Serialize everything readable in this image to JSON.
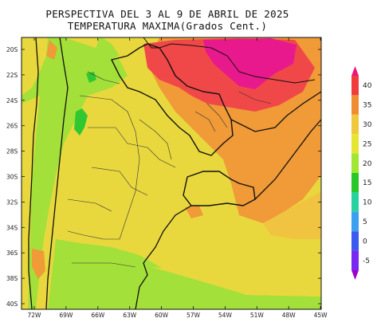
{
  "title_line1": "PERSPECTIVA DEL 3 AL 9 DE ABRIL DE 2025",
  "title_line2": "TEMPERATURA MAXIMA(Grados Cent.)",
  "lat_labels": [
    "20S",
    "22S",
    "24S",
    "26S",
    "28S",
    "30S",
    "32S",
    "34S",
    "36S",
    "38S",
    "40S"
  ],
  "lon_labels": [
    "72W",
    "69W",
    "66W",
    "63W",
    "60W",
    "57W",
    "54W",
    "51W",
    "48W",
    "45W"
  ],
  "colorbar": {
    "labels": [
      "40",
      "35",
      "30",
      "25",
      "20",
      "15",
      "10",
      "5",
      "0",
      "-5"
    ],
    "colors": [
      "#f0147a",
      "#f03c3c",
      "#f08c32",
      "#f0c83c",
      "#e6e632",
      "#a0e632",
      "#28c828",
      "#28d2a0",
      "#3ca0f0",
      "#3c5af0",
      "#7828f0",
      "#a000c8"
    ]
  },
  "colors": {
    "yellow": "#e8d83e",
    "green": "#a4e03a",
    "dark_green": "#30c830",
    "orange": "#f09a38",
    "red": "#f04848",
    "magenta": "#e8198c"
  }
}
